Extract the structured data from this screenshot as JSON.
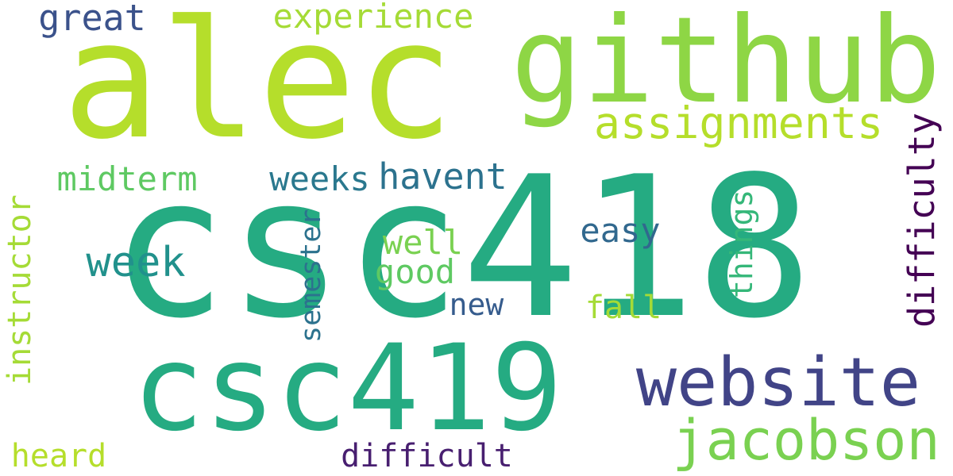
{
  "words": [
    {
      "id": "csc418",
      "text": "csc418",
      "color": "#25ab82",
      "orientation": "horizontal"
    },
    {
      "id": "alec",
      "text": "alec",
      "color": "#b5de2b",
      "orientation": "horizontal"
    },
    {
      "id": "github",
      "text": "github",
      "color": "#8ed645",
      "orientation": "horizontal"
    },
    {
      "id": "csc419",
      "text": "csc419",
      "color": "#25ab82",
      "orientation": "horizontal"
    },
    {
      "id": "website",
      "text": "website",
      "color": "#414487",
      "orientation": "horizontal"
    },
    {
      "id": "jacobson",
      "text": "jacobson",
      "color": "#7ad151",
      "orientation": "horizontal"
    },
    {
      "id": "assignments",
      "text": "assignments",
      "color": "#b5de2b",
      "orientation": "horizontal"
    },
    {
      "id": "difficulty",
      "text": "difficulty",
      "color": "#440154",
      "orientation": "vertical"
    },
    {
      "id": "instructor",
      "text": "instructor",
      "color": "#a5db36",
      "orientation": "vertical"
    },
    {
      "id": "experience",
      "text": "experience",
      "color": "#a5db36",
      "orientation": "horizontal"
    },
    {
      "id": "great",
      "text": "great",
      "color": "#3b528b",
      "orientation": "horizontal"
    },
    {
      "id": "midterm",
      "text": "midterm",
      "color": "#5ec962",
      "orientation": "horizontal"
    },
    {
      "id": "weeks",
      "text": "weeks",
      "color": "#2a788e",
      "orientation": "horizontal"
    },
    {
      "id": "havent",
      "text": "havent",
      "color": "#2c728e",
      "orientation": "horizontal"
    },
    {
      "id": "week",
      "text": "week",
      "color": "#21918c",
      "orientation": "horizontal"
    },
    {
      "id": "easy",
      "text": "easy",
      "color": "#31688e",
      "orientation": "horizontal"
    },
    {
      "id": "things",
      "text": "things",
      "color": "#35b779",
      "orientation": "vertical"
    },
    {
      "id": "semester",
      "text": "semester",
      "color": "#2c728e",
      "orientation": "vertical"
    },
    {
      "id": "well",
      "text": "well",
      "color": "#7ad151",
      "orientation": "horizontal"
    },
    {
      "id": "good",
      "text": "good",
      "color": "#5ec962",
      "orientation": "horizontal"
    },
    {
      "id": "new",
      "text": "new",
      "color": "#365c8d",
      "orientation": "horizontal"
    },
    {
      "id": "fall",
      "text": "fall",
      "color": "#a5db36",
      "orientation": "horizontal"
    },
    {
      "id": "heard",
      "text": "heard",
      "color": "#b5de2b",
      "orientation": "horizontal"
    },
    {
      "id": "difficult",
      "text": "difficult",
      "color": "#481f70",
      "orientation": "horizontal"
    }
  ]
}
